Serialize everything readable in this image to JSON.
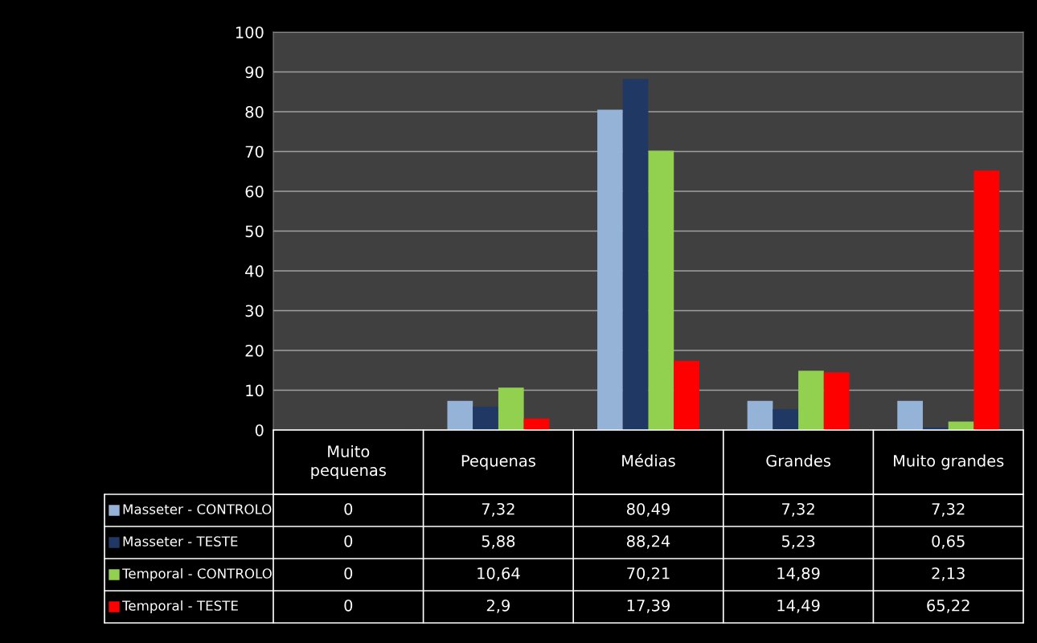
{
  "chart_data": {
    "type": "bar",
    "categories": [
      "Muito\npequenas",
      "Pequenas",
      "Médias",
      "Grandes",
      "Muito grandes"
    ],
    "series": [
      {
        "name": "Masseter - CONTROLO",
        "color": "#95b3d7",
        "values": [
          0,
          7.32,
          80.49,
          7.32,
          7.32
        ],
        "value_labels": [
          "0",
          "7,32",
          "80,49",
          "7,32",
          "7,32"
        ]
      },
      {
        "name": "Masseter - TESTE",
        "color": "#1f3864",
        "values": [
          0,
          5.88,
          88.24,
          5.23,
          0.65
        ],
        "value_labels": [
          "0",
          "5,88",
          "88,24",
          "5,23",
          "0,65"
        ]
      },
      {
        "name": "Temporal - CONTROLO",
        "color": "#92d050",
        "values": [
          0,
          10.64,
          70.21,
          14.89,
          2.13
        ],
        "value_labels": [
          "0",
          "10,64",
          "70,21",
          "14,89",
          "2,13"
        ]
      },
      {
        "name": "Temporal - TESTE",
        "color": "#ff0000",
        "values": [
          0,
          2.9,
          17.39,
          14.49,
          65.22
        ],
        "value_labels": [
          "0",
          "2,9",
          "17,39",
          "14,49",
          "65,22"
        ]
      }
    ],
    "ylim": [
      0,
      100
    ],
    "yticks": [
      0,
      10,
      20,
      30,
      40,
      50,
      60,
      70,
      80,
      90,
      100
    ],
    "grid": "y",
    "legend": "bottom"
  }
}
